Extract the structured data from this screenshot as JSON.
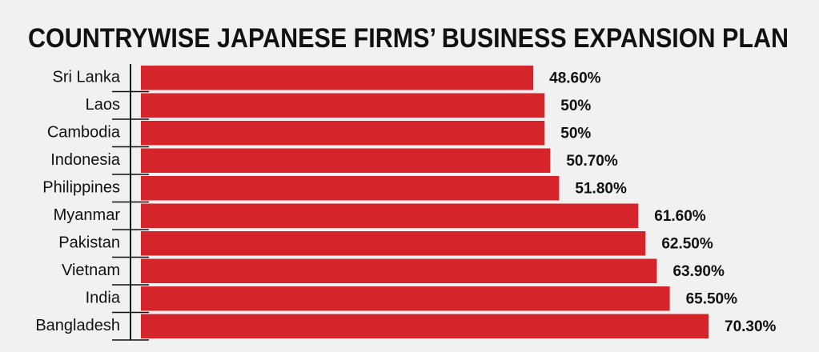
{
  "chart_data": {
    "type": "hbar",
    "title": "COUNTRYWISE JAPANESE FIRMS’ BUSINESS EXPANSION PLAN",
    "categories": [
      "Sri Lanka",
      "Laos",
      "Cambodia",
      "Indonesia",
      "Philippines",
      "Myanmar",
      "Pakistan",
      "Vietnam",
      "India",
      "Bangladesh"
    ],
    "values": [
      48.6,
      50,
      50,
      50.7,
      51.8,
      61.6,
      62.5,
      63.9,
      65.5,
      70.3
    ],
    "value_labels": [
      "48.60%",
      "50%",
      "50%",
      "50.70%",
      "51.80%",
      "61.60%",
      "62.50%",
      "63.90%",
      "65.50%",
      "70.30%"
    ],
    "color": "#d6242b",
    "xlim": [
      0,
      70.3
    ]
  }
}
